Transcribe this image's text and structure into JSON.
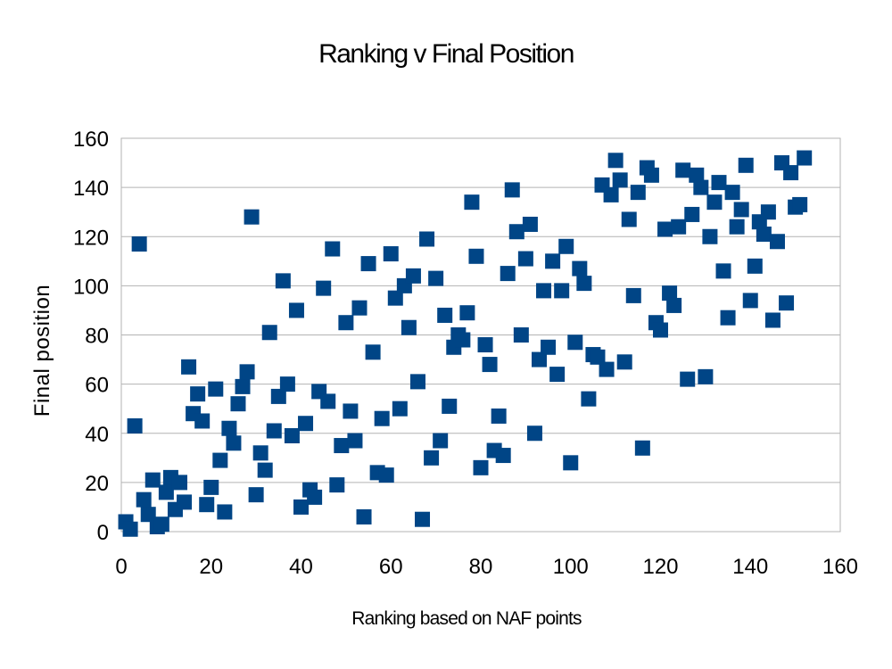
{
  "chart_data": {
    "type": "scatter",
    "title": "Ranking v Final Position",
    "xlabel": "Ranking based on NAF points",
    "ylabel": "Final position",
    "xlim": [
      0,
      160
    ],
    "ylim": [
      0,
      160
    ],
    "x_ticks": [
      0,
      20,
      40,
      60,
      80,
      100,
      120,
      140,
      160
    ],
    "y_ticks": [
      0,
      20,
      40,
      60,
      80,
      100,
      120,
      140,
      160
    ],
    "grid": true,
    "legend": "none",
    "marker": "square",
    "color": "#004586",
    "points": [
      [
        1,
        4
      ],
      [
        2,
        1
      ],
      [
        3,
        43
      ],
      [
        4,
        117
      ],
      [
        5,
        13
      ],
      [
        6,
        7
      ],
      [
        7,
        21
      ],
      [
        8,
        2
      ],
      [
        9,
        3
      ],
      [
        10,
        16
      ],
      [
        11,
        22
      ],
      [
        12,
        9
      ],
      [
        13,
        20
      ],
      [
        14,
        12
      ],
      [
        15,
        67
      ],
      [
        16,
        48
      ],
      [
        17,
        56
      ],
      [
        18,
        45
      ],
      [
        19,
        11
      ],
      [
        20,
        18
      ],
      [
        21,
        58
      ],
      [
        22,
        29
      ],
      [
        23,
        8
      ],
      [
        24,
        42
      ],
      [
        25,
        36
      ],
      [
        26,
        52
      ],
      [
        27,
        59
      ],
      [
        28,
        65
      ],
      [
        29,
        128
      ],
      [
        30,
        15
      ],
      [
        31,
        32
      ],
      [
        32,
        25
      ],
      [
        33,
        81
      ],
      [
        34,
        41
      ],
      [
        35,
        55
      ],
      [
        36,
        102
      ],
      [
        37,
        60
      ],
      [
        38,
        39
      ],
      [
        39,
        90
      ],
      [
        40,
        10
      ],
      [
        41,
        44
      ],
      [
        42,
        17
      ],
      [
        43,
        14
      ],
      [
        44,
        57
      ],
      [
        45,
        99
      ],
      [
        46,
        53
      ],
      [
        47,
        115
      ],
      [
        48,
        19
      ],
      [
        49,
        35
      ],
      [
        50,
        85
      ],
      [
        51,
        49
      ],
      [
        52,
        37
      ],
      [
        53,
        91
      ],
      [
        54,
        6
      ],
      [
        55,
        109
      ],
      [
        56,
        73
      ],
      [
        57,
        24
      ],
      [
        58,
        46
      ],
      [
        59,
        23
      ],
      [
        60,
        113
      ],
      [
        61,
        95
      ],
      [
        62,
        50
      ],
      [
        63,
        100
      ],
      [
        64,
        83
      ],
      [
        65,
        104
      ],
      [
        66,
        61
      ],
      [
        67,
        5
      ],
      [
        68,
        119
      ],
      [
        69,
        30
      ],
      [
        70,
        103
      ],
      [
        71,
        37
      ],
      [
        72,
        88
      ],
      [
        73,
        51
      ],
      [
        74,
        75
      ],
      [
        75,
        80
      ],
      [
        76,
        78
      ],
      [
        77,
        89
      ],
      [
        78,
        134
      ],
      [
        79,
        112
      ],
      [
        80,
        26
      ],
      [
        81,
        76
      ],
      [
        82,
        68
      ],
      [
        83,
        33
      ],
      [
        84,
        47
      ],
      [
        85,
        31
      ],
      [
        86,
        105
      ],
      [
        87,
        139
      ],
      [
        88,
        122
      ],
      [
        89,
        80
      ],
      [
        90,
        111
      ],
      [
        91,
        125
      ],
      [
        92,
        40
      ],
      [
        93,
        70
      ],
      [
        94,
        98
      ],
      [
        95,
        75
      ],
      [
        96,
        110
      ],
      [
        97,
        64
      ],
      [
        98,
        98
      ],
      [
        99,
        116
      ],
      [
        100,
        28
      ],
      [
        101,
        77
      ],
      [
        102,
        107
      ],
      [
        103,
        101
      ],
      [
        104,
        54
      ],
      [
        105,
        72
      ],
      [
        106,
        71
      ],
      [
        107,
        141
      ],
      [
        108,
        66
      ],
      [
        109,
        137
      ],
      [
        110,
        151
      ],
      [
        111,
        143
      ],
      [
        112,
        69
      ],
      [
        113,
        127
      ],
      [
        114,
        96
      ],
      [
        115,
        138
      ],
      [
        116,
        34
      ],
      [
        117,
        148
      ],
      [
        118,
        145
      ],
      [
        119,
        85
      ],
      [
        120,
        82
      ],
      [
        121,
        123
      ],
      [
        122,
        97
      ],
      [
        123,
        92
      ],
      [
        124,
        124
      ],
      [
        125,
        147
      ],
      [
        126,
        62
      ],
      [
        127,
        129
      ],
      [
        128,
        145
      ],
      [
        129,
        140
      ],
      [
        130,
        63
      ],
      [
        131,
        120
      ],
      [
        132,
        134
      ],
      [
        133,
        142
      ],
      [
        134,
        106
      ],
      [
        135,
        87
      ],
      [
        136,
        138
      ],
      [
        137,
        124
      ],
      [
        138,
        131
      ],
      [
        139,
        149
      ],
      [
        140,
        94
      ],
      [
        141,
        108
      ],
      [
        142,
        126
      ],
      [
        143,
        121
      ],
      [
        144,
        130
      ],
      [
        145,
        86
      ],
      [
        146,
        118
      ],
      [
        147,
        150
      ],
      [
        148,
        93
      ],
      [
        149,
        146
      ],
      [
        150,
        132
      ],
      [
        151,
        133
      ],
      [
        152,
        152
      ]
    ]
  }
}
